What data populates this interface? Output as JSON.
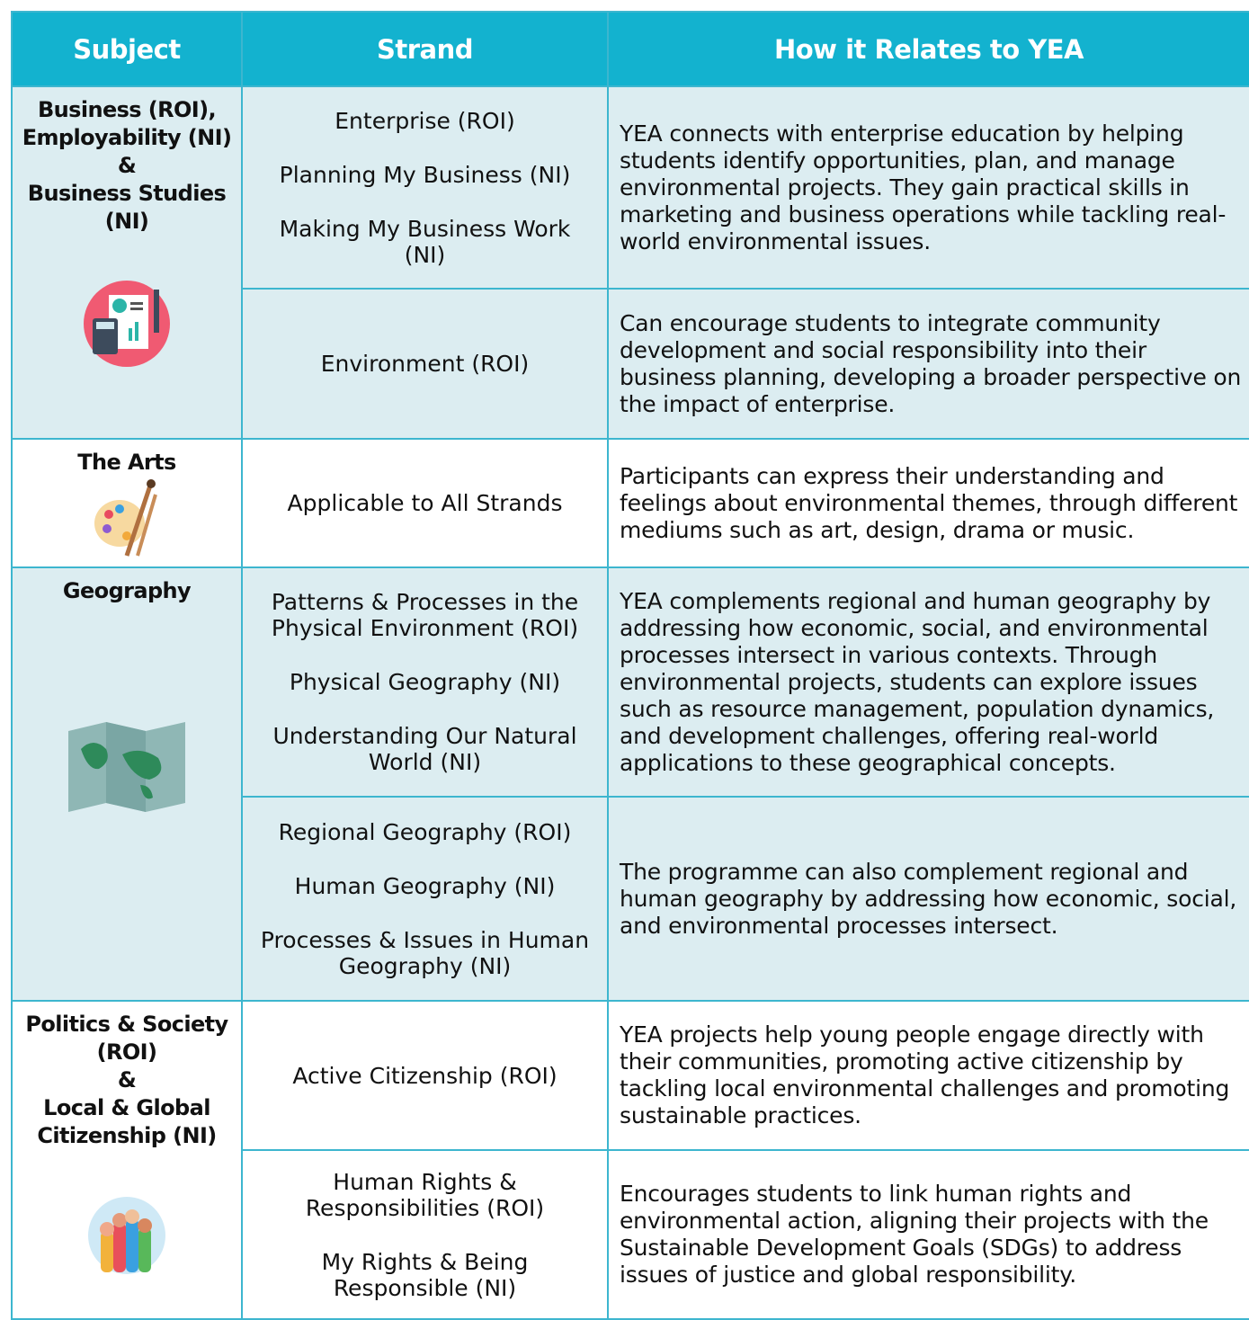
{
  "header": {
    "columns": [
      "Subject",
      "Strand",
      "How it Relates to YEA"
    ]
  },
  "table": {
    "rows": [
      {
        "subject": [
          "Business (ROI),",
          "Employability (NI)",
          "&",
          "Business Studies (NI)"
        ],
        "strands": [
          {
            "lines": [
              "Enterprise (ROI)",
              "Planning My Business (NI)",
              "Making My Business Work (NI)"
            ],
            "relates": "YEA connects with enterprise education by helping students identify opportunities, plan, and manage environmental projects. They gain practical skills in marketing and business operations while tackling real-world environmental issues."
          },
          {
            "lines": [
              "Environment (ROI)"
            ],
            "relates": "Can encourage students to integrate community development and social responsibility into their business planning, developing a broader perspective on the impact of enterprise."
          }
        ]
      },
      {
        "subject": [
          "The Arts"
        ],
        "strands": [
          {
            "lines": [
              "Applicable to All Strands"
            ],
            "relates": "Participants can express their understanding and feelings about environmental themes, through different mediums such as art, design, drama or music."
          }
        ]
      },
      {
        "subject": [
          "Geography"
        ],
        "strands": [
          {
            "lines": [
              "Patterns & Processes in the Physical Environment (ROI)",
              "Physical Geography (NI)",
              "Understanding Our Natural World (NI)"
            ],
            "relates": "YEA complements regional and human geography by addressing how economic, social, and environmental processes intersect in various contexts. Through environmental projects, students can explore issues such as resource management, population dynamics, and development challenges, offering real-world applications to these geographical concepts."
          },
          {
            "lines": [
              "Regional Geography (ROI)",
              "Human Geography (NI)",
              "Processes & Issues in Human Geography (NI)"
            ],
            "relates": "The programme can also complement regional and human geography by addressing how economic, social, and environmental processes intersect."
          }
        ]
      },
      {
        "subject": [
          "Politics & Society (ROI)",
          "&",
          "Local & Global Citizenship (NI)"
        ],
        "strands": [
          {
            "lines": [
              "Active Citizenship (ROI)"
            ],
            "relates": "YEA projects help young people engage directly with their communities, promoting active citizenship by tackling local environmental challenges and promoting sustainable practices."
          },
          {
            "lines": [
              "Human Rights & Responsibilities (ROI)",
              "My Rights & Being Responsible (NI)"
            ],
            "relates": "Encourages students to link human rights and environmental action, aligning their projects with the Sustainable Development Goals (SDGs) to address issues of justice and global responsibility."
          }
        ]
      }
    ]
  }
}
